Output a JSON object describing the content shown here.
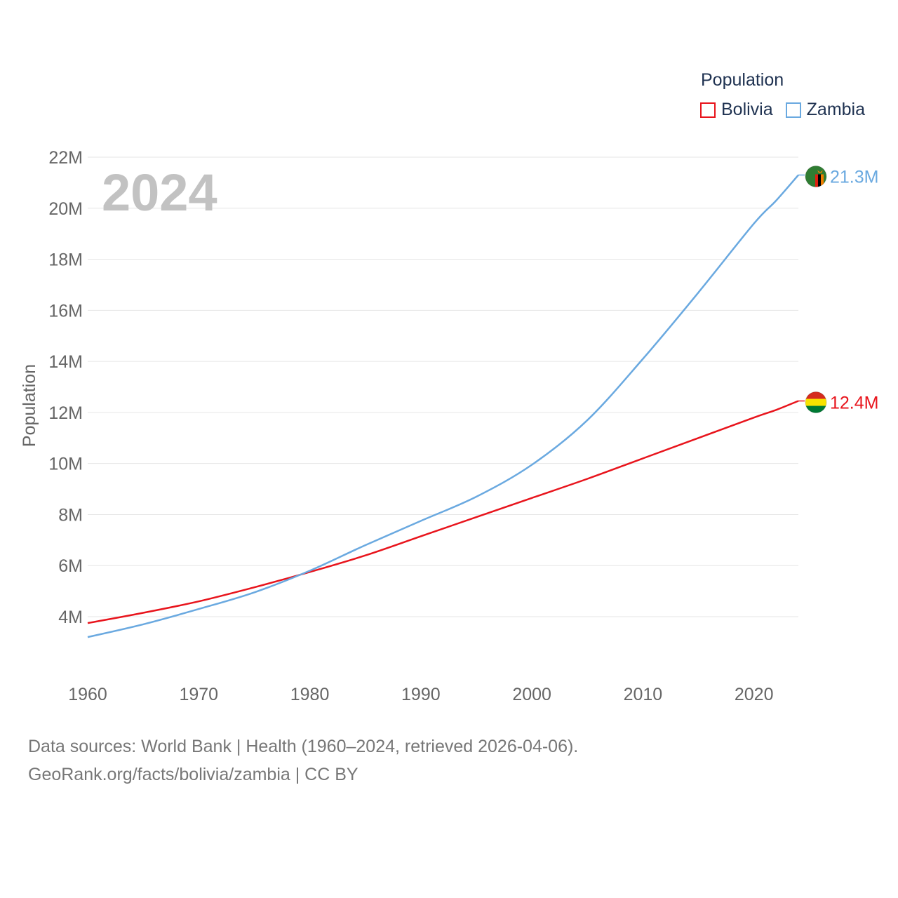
{
  "legend": {
    "title": "Population",
    "items": [
      {
        "name": "Bolivia",
        "color": "#e8141c"
      },
      {
        "name": "Zambia",
        "color": "#6aa9e0"
      }
    ]
  },
  "footer": {
    "line1": "Data sources: World Bank | Health (1960–2024, retrieved 2026-04-06).",
    "line2": "GeoRank.org/facts/bolivia/zambia | CC BY"
  },
  "chart_data": {
    "type": "line",
    "title": "Population",
    "year_label": "2024",
    "xlabel": "",
    "ylabel": "Population",
    "xlim": [
      1960,
      2024
    ],
    "ylim": [
      2000000,
      22000000
    ],
    "x_ticks": [
      1960,
      1970,
      1980,
      1990,
      2000,
      2010,
      2020
    ],
    "x_tick_labels": [
      "1960",
      "1970",
      "1980",
      "1990",
      "2000",
      "2010",
      "2020"
    ],
    "y_ticks": [
      4000000,
      6000000,
      8000000,
      10000000,
      12000000,
      14000000,
      16000000,
      18000000,
      20000000,
      22000000
    ],
    "y_tick_labels": [
      "4M",
      "6M",
      "8M",
      "10M",
      "12M",
      "14M",
      "16M",
      "18M",
      "20M",
      "22M"
    ],
    "grid": true,
    "series": [
      {
        "name": "Bolivia",
        "color": "#e8141c",
        "end_label": "12.4M",
        "x": [
          1960,
          1965,
          1970,
          1975,
          1980,
          1985,
          1990,
          1995,
          2000,
          2005,
          2010,
          2015,
          2020,
          2022,
          2024
        ],
        "values": [
          3750000,
          4150000,
          4600000,
          5150000,
          5750000,
          6400000,
          7150000,
          7900000,
          8650000,
          9400000,
          10200000,
          11000000,
          11800000,
          12100000,
          12450000
        ]
      },
      {
        "name": "Zambia",
        "color": "#6aa9e0",
        "end_label": "21.3M",
        "x": [
          1960,
          1965,
          1970,
          1975,
          1980,
          1985,
          1990,
          1995,
          2000,
          2005,
          2010,
          2015,
          2020,
          2022,
          2024
        ],
        "values": [
          3200000,
          3700000,
          4300000,
          4950000,
          5800000,
          6800000,
          7750000,
          8700000,
          9950000,
          11700000,
          14100000,
          16700000,
          19400000,
          20300000,
          21300000
        ]
      }
    ]
  }
}
